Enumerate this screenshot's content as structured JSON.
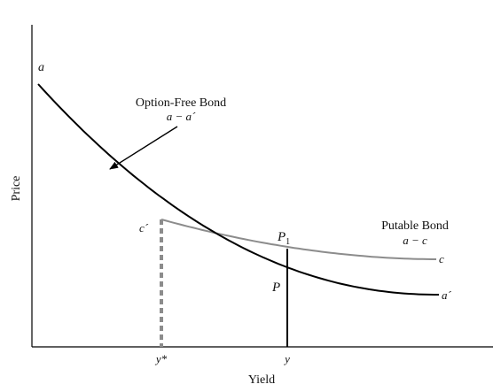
{
  "chart_data": {
    "type": "line",
    "xlabel": "Yield",
    "ylabel": "Price",
    "grid": false,
    "legend": "none",
    "x_ticks": [
      {
        "label": "y*"
      },
      {
        "label": "y"
      }
    ],
    "series": [
      {
        "name": "Option-Free Bond",
        "label_line2": "a − a´",
        "start_label": "a",
        "end_label": "a´",
        "color": "#000000"
      },
      {
        "name": "Putable Bond",
        "label_line2": "a − c",
        "start_label": "c´",
        "end_label": "c",
        "color": "#8c8c8c"
      }
    ],
    "point_labels": {
      "p1": "P",
      "p1_sub": "1",
      "p": "P"
    },
    "colors": {
      "axes": "#000000",
      "option_free_curve": "#000000",
      "putable_curve": "#8c8c8c",
      "dashed_guide": "#8c8c8c",
      "vertical_line": "#000000"
    }
  }
}
